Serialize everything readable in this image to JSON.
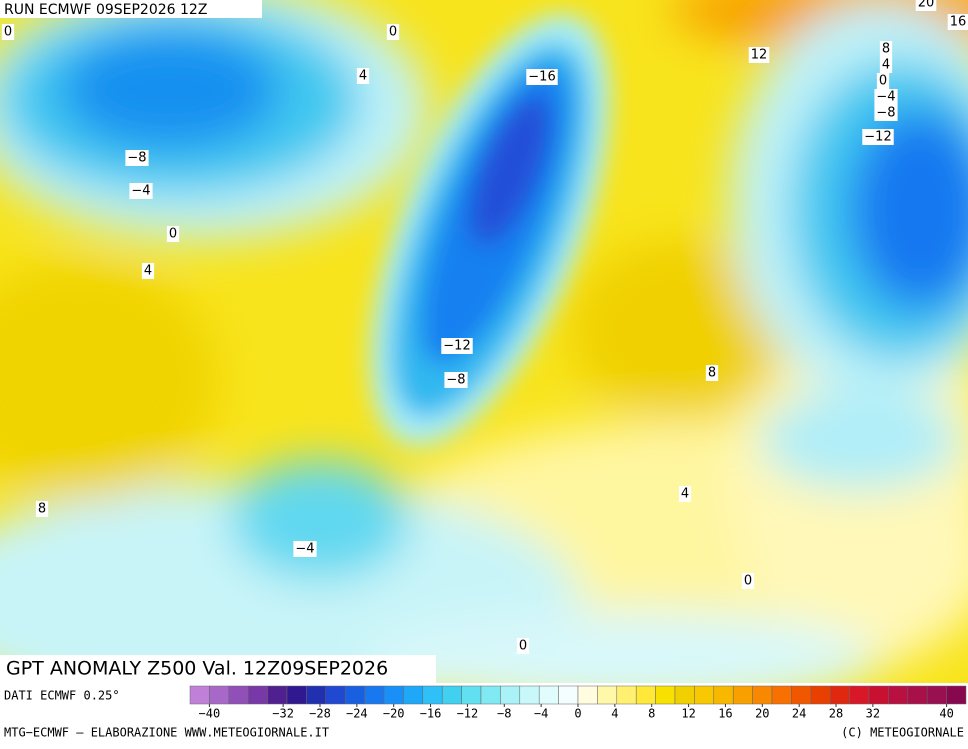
{
  "header": {
    "run": "RUN ECMWF 09SEP2026 12Z"
  },
  "map": {
    "contour_labels": [
      0,
      0,
      4,
      -16,
      12,
      8,
      4,
      0,
      -4,
      -8,
      -12,
      -8,
      -4,
      0,
      4,
      -12,
      -8,
      8,
      8,
      -4,
      4,
      0,
      0,
      20,
      16
    ]
  },
  "title": "GPT ANOMALY Z500 Val. 12Z09SEP2026",
  "source": "DATI ECMWF 0.25°",
  "colorbar": {
    "colors": [
      "#c080d8",
      "#a868c8",
      "#9050b8",
      "#7838a8",
      "#502090",
      "#301890",
      "#2030b0",
      "#2048d0",
      "#1860e0",
      "#1878f0",
      "#1890f8",
      "#20a8f8",
      "#30c0f8",
      "#40d0f0",
      "#60e0f0",
      "#80eaf4",
      "#a8f2f8",
      "#c8f8fa",
      "#e0fcfc",
      "#f4fefe",
      "#fffce0",
      "#fff8a8",
      "#fff070",
      "#ffe838",
      "#f8e000",
      "#f0d000",
      "#f8c800",
      "#f8b800",
      "#f8a000",
      "#f88800",
      "#f87000",
      "#f05800",
      "#e84000",
      "#e02810",
      "#d81828",
      "#c81030",
      "#b81040",
      "#a81048",
      "#981050",
      "#880850"
    ],
    "ticks": [
      -40,
      -32,
      -28,
      -24,
      -20,
      -16,
      -12,
      -8,
      -4,
      0,
      4,
      8,
      12,
      16,
      20,
      24,
      28,
      32,
      40
    ],
    "range": [
      -40,
      40
    ]
  },
  "footer": {
    "left": "MTG-ECMWF – ELABORAZIONE WWW.METEOGIORNALE.IT",
    "right": "(C) METEOGIORNALE"
  }
}
